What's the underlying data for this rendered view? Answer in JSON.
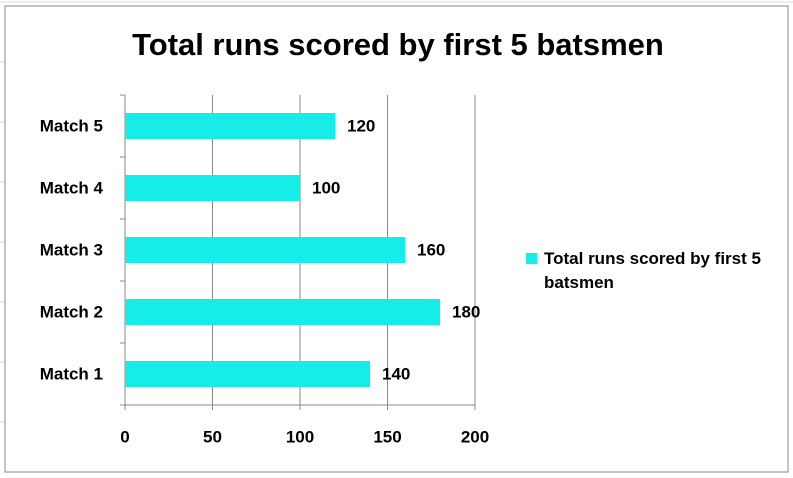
{
  "chart_data": {
    "type": "bar",
    "orientation": "horizontal",
    "title": "Total runs scored by first 5 batsmen",
    "categories": [
      "Match 1",
      "Match 2",
      "Match 3",
      "Match 4",
      "Match 5"
    ],
    "series": [
      {
        "name": "Total runs scored by first 5 batsmen",
        "color": "#17ede8",
        "values": [
          140,
          180,
          160,
          100,
          120
        ]
      }
    ],
    "xlim": [
      0,
      200
    ],
    "xticks": [
      0,
      50,
      100,
      150,
      200
    ],
    "grid": true,
    "legend": "right"
  }
}
